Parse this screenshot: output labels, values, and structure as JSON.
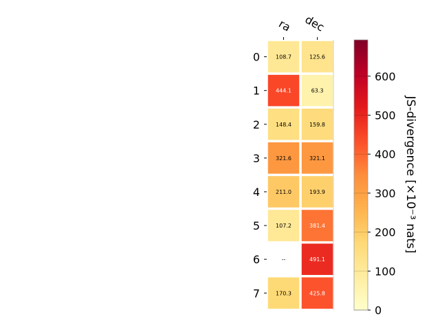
{
  "chart_data": {
    "type": "heatmap",
    "columns": [
      "ra",
      "dec"
    ],
    "rows": [
      "0",
      "1",
      "2",
      "3",
      "4",
      "5",
      "6",
      "7"
    ],
    "values": [
      [
        108.7,
        125.6
      ],
      [
        444.1,
        63.3
      ],
      [
        148.4,
        159.8
      ],
      [
        321.6,
        321.1
      ],
      [
        211.0,
        193.9
      ],
      [
        107.2,
        381.4
      ],
      [
        null,
        491.1
      ],
      [
        170.3,
        425.8
      ]
    ],
    "labels": [
      [
        "108.7",
        "125.6"
      ],
      [
        "444.1",
        "63.3"
      ],
      [
        "148.4",
        "159.8"
      ],
      [
        "321.6",
        "321.1"
      ],
      [
        "211.0",
        "193.9"
      ],
      [
        "107.2",
        "381.4"
      ],
      [
        "--",
        "491.1"
      ],
      [
        "170.3",
        "425.8"
      ]
    ],
    "colormap": "YlOrRd",
    "colorbar": {
      "label": "JS-divergence [×10⁻³ nats]",
      "range": [
        0,
        693.1
      ],
      "ticks": [
        0,
        100,
        200,
        300,
        400,
        500,
        600
      ],
      "tick_labels": [
        "0",
        "100",
        "200",
        "300",
        "400",
        "500",
        "600"
      ]
    },
    "grid": false
  }
}
